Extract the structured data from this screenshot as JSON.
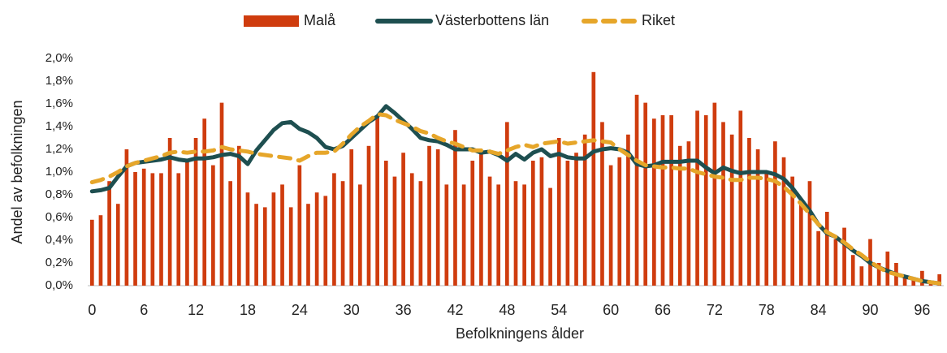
{
  "chart_data": {
    "type": "bar_line",
    "x_label": "Befolkningens ålder",
    "y_label": "Andel av befolkningen",
    "categories": [
      "0",
      null,
      null,
      null,
      null,
      null,
      "6",
      null,
      null,
      null,
      null,
      null,
      "12",
      null,
      null,
      null,
      null,
      null,
      "18",
      null,
      null,
      null,
      null,
      null,
      "24",
      null,
      null,
      null,
      null,
      null,
      "30",
      null,
      null,
      null,
      null,
      null,
      "36",
      null,
      null,
      null,
      null,
      null,
      "42",
      null,
      null,
      null,
      null,
      null,
      "48",
      null,
      null,
      null,
      null,
      null,
      "54",
      null,
      null,
      null,
      null,
      null,
      "60",
      null,
      null,
      null,
      null,
      null,
      "66",
      null,
      null,
      null,
      null,
      null,
      "72",
      null,
      null,
      null,
      null,
      null,
      "78",
      null,
      null,
      null,
      null,
      null,
      "84",
      null,
      null,
      null,
      null,
      null,
      "90",
      null,
      null,
      null,
      null,
      null,
      "96",
      null,
      null
    ],
    "series": [
      {
        "name": "Malå",
        "kind": "bar",
        "color": "#cf3c0e",
        "values": [
          0.58,
          0.62,
          0.92,
          0.72,
          1.2,
          1.0,
          1.03,
          0.99,
          0.99,
          1.3,
          0.99,
          1.1,
          1.3,
          1.47,
          1.06,
          1.61,
          0.92,
          1.23,
          0.82,
          0.72,
          0.69,
          0.82,
          0.89,
          0.69,
          1.06,
          0.72,
          0.82,
          0.79,
          0.99,
          0.92,
          1.2,
          0.89,
          1.23,
          1.5,
          1.1,
          0.96,
          1.17,
          0.99,
          0.92,
          1.23,
          1.2,
          0.89,
          1.37,
          0.89,
          1.1,
          1.17,
          0.96,
          0.89,
          1.44,
          0.92,
          0.89,
          1.1,
          1.13,
          0.86,
          1.3,
          1.1,
          1.17,
          1.33,
          1.88,
          1.44,
          1.06,
          1.13,
          1.33,
          1.68,
          1.61,
          1.47,
          1.5,
          1.5,
          1.23,
          1.27,
          1.54,
          1.5,
          1.61,
          1.44,
          1.33,
          1.54,
          1.3,
          1.2,
          0.99,
          1.27,
          1.13,
          0.96,
          0.72,
          0.92,
          0.48,
          0.65,
          0.41,
          0.51,
          0.27,
          0.17,
          0.41,
          0.2,
          0.3,
          0.2,
          0.07,
          0.07,
          0.13,
          0.03,
          0.1
        ]
      },
      {
        "name": "Västerbottens län",
        "kind": "line",
        "color": "#1e4f50",
        "values": [
          0.83,
          0.84,
          0.86,
          0.96,
          1.05,
          1.08,
          1.09,
          1.1,
          1.11,
          1.13,
          1.11,
          1.1,
          1.12,
          1.12,
          1.13,
          1.15,
          1.16,
          1.14,
          1.07,
          1.19,
          1.28,
          1.37,
          1.43,
          1.44,
          1.38,
          1.35,
          1.3,
          1.22,
          1.2,
          1.23,
          1.3,
          1.37,
          1.44,
          1.49,
          1.58,
          1.52,
          1.45,
          1.38,
          1.3,
          1.28,
          1.27,
          1.24,
          1.2,
          1.2,
          1.2,
          1.17,
          1.18,
          1.15,
          1.1,
          1.16,
          1.11,
          1.17,
          1.2,
          1.14,
          1.16,
          1.13,
          1.12,
          1.12,
          1.18,
          1.2,
          1.21,
          1.2,
          1.17,
          1.07,
          1.05,
          1.06,
          1.09,
          1.09,
          1.09,
          1.1,
          1.1,
          1.04,
          0.99,
          1.04,
          1.01,
          0.99,
          1.0,
          1.0,
          1.0,
          0.98,
          0.94,
          0.86,
          0.76,
          0.66,
          0.54,
          0.46,
          0.43,
          0.37,
          0.31,
          0.26,
          0.2,
          0.16,
          0.13,
          0.1,
          0.08,
          0.06,
          0.04,
          0.03,
          0.02
        ]
      },
      {
        "name": "Riket",
        "kind": "dashed",
        "color": "#e6a62a",
        "values": [
          0.91,
          0.93,
          0.96,
          1.0,
          1.05,
          1.08,
          1.1,
          1.12,
          1.14,
          1.17,
          1.18,
          1.17,
          1.18,
          1.18,
          1.19,
          1.22,
          1.2,
          1.19,
          1.18,
          1.16,
          1.15,
          1.14,
          1.13,
          1.12,
          1.1,
          1.14,
          1.17,
          1.17,
          1.18,
          1.25,
          1.33,
          1.4,
          1.45,
          1.51,
          1.5,
          1.46,
          1.43,
          1.4,
          1.36,
          1.34,
          1.3,
          1.27,
          1.25,
          1.22,
          1.19,
          1.19,
          1.18,
          1.16,
          1.19,
          1.22,
          1.24,
          1.22,
          1.25,
          1.26,
          1.27,
          1.25,
          1.26,
          1.27,
          1.28,
          1.27,
          1.26,
          1.2,
          1.15,
          1.1,
          1.06,
          1.05,
          1.04,
          1.04,
          1.03,
          1.03,
          1.0,
          0.98,
          0.96,
          0.95,
          0.93,
          0.93,
          0.95,
          0.95,
          0.94,
          0.92,
          0.87,
          0.8,
          0.72,
          0.63,
          0.54,
          0.47,
          0.43,
          0.38,
          0.32,
          0.27,
          0.21,
          0.16,
          0.12,
          0.1,
          0.08,
          0.06,
          0.04,
          0.03,
          0.02
        ]
      }
    ],
    "ylim": [
      0,
      2
    ],
    "yticks": [
      {
        "value": 0,
        "label": "0,0%"
      },
      {
        "value": 0.2,
        "label": "0,2%"
      },
      {
        "value": 0.4,
        "label": "0,4%"
      },
      {
        "value": 0.6,
        "label": "0,6%"
      },
      {
        "value": 0.8,
        "label": "0,8%"
      },
      {
        "value": 1.0,
        "label": "1,0%"
      },
      {
        "value": 1.2,
        "label": "1,2%"
      },
      {
        "value": 1.4,
        "label": "1,4%"
      },
      {
        "value": 1.6,
        "label": "1,6%"
      },
      {
        "value": 1.8,
        "label": "1,8%"
      },
      {
        "value": 2.0,
        "label": "2,0%"
      }
    ],
    "grid": false,
    "legend": "top"
  }
}
